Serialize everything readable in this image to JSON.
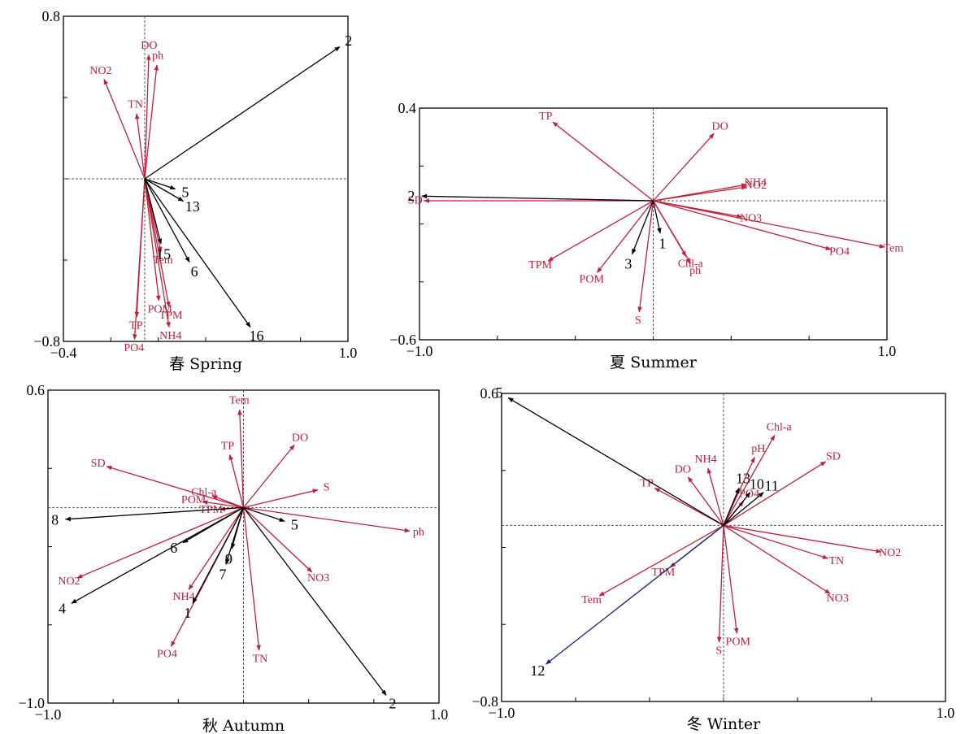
{
  "chart_data": [
    {
      "type": "biplot",
      "caption": "春 Spring",
      "xlim": [
        -0.4,
        1.0
      ],
      "ylim": [
        -0.8,
        0.8
      ],
      "xlim_labels": [
        "−0.4",
        "1.0"
      ],
      "ylim_labels": [
        "−0.8",
        "0.8"
      ],
      "environment": [
        {
          "name": "DO",
          "x": 0.02,
          "y": 0.61
        },
        {
          "name": "ph",
          "x": 0.06,
          "y": 0.56
        },
        {
          "name": "NO2",
          "x": -0.2,
          "y": 0.49
        },
        {
          "name": "TN",
          "x": -0.04,
          "y": 0.32
        },
        {
          "name": "Tem",
          "x": 0.08,
          "y": -0.36
        },
        {
          "name": "POM",
          "x": 0.07,
          "y": -0.6
        },
        {
          "name": "TPM",
          "x": 0.12,
          "y": -0.63
        },
        {
          "name": "TP",
          "x": -0.04,
          "y": -0.68
        },
        {
          "name": "NH4",
          "x": 0.12,
          "y": -0.73
        },
        {
          "name": "PO4",
          "x": -0.05,
          "y": -0.79
        }
      ],
      "species": [
        {
          "name": "2",
          "x": 0.96,
          "y": 0.65
        },
        {
          "name": "5",
          "x": 0.15,
          "y": -0.05
        },
        {
          "name": "13",
          "x": 0.19,
          "y": -0.11
        },
        {
          "name": "15",
          "x": 0.08,
          "y": -0.32
        },
        {
          "name": "6",
          "x": 0.22,
          "y": -0.41
        },
        {
          "name": "16",
          "x": 0.52,
          "y": -0.73
        }
      ]
    },
    {
      "type": "biplot",
      "caption": "夏 Summer",
      "xlim": [
        -1.0,
        1.0
      ],
      "ylim": [
        -0.6,
        0.4
      ],
      "xlim_labels": [
        "−1.0",
        "1.0"
      ],
      "ylim_labels": [
        "−0.6",
        "0.4"
      ],
      "environment": [
        {
          "name": "TP",
          "x": -0.43,
          "y": 0.34
        },
        {
          "name": "DO",
          "x": 0.26,
          "y": 0.29
        },
        {
          "name": "NH4",
          "x": 0.4,
          "y": 0.07
        },
        {
          "name": "NO2",
          "x": 0.4,
          "y": 0.06
        },
        {
          "name": "SD",
          "x": -0.98,
          "y": 0.0
        },
        {
          "name": "NO3",
          "x": 0.38,
          "y": -0.07
        },
        {
          "name": "Chl-a",
          "x": 0.14,
          "y": -0.24
        },
        {
          "name": "ph",
          "x": 0.16,
          "y": -0.27
        },
        {
          "name": "PO4",
          "x": 0.76,
          "y": -0.21
        },
        {
          "name": "Tem",
          "x": 0.99,
          "y": -0.2
        },
        {
          "name": "TPM",
          "x": -0.45,
          "y": -0.26
        },
        {
          "name": "POM",
          "x": -0.24,
          "y": -0.31
        },
        {
          "name": "S",
          "x": -0.06,
          "y": -0.48
        }
      ],
      "species": [
        {
          "name": "2",
          "x": -0.99,
          "y": 0.02
        },
        {
          "name": "1",
          "x": 0.03,
          "y": -0.14
        },
        {
          "name": "3",
          "x": -0.09,
          "y": -0.23
        }
      ]
    },
    {
      "type": "biplot",
      "caption": "秋 Autumn",
      "xlim": [
        -1.0,
        1.0
      ],
      "ylim": [
        -1.0,
        0.6
      ],
      "xlim_labels": [
        "−1.0",
        "1.0"
      ],
      "ylim_labels": [
        "−1.0",
        "0.6"
      ],
      "environment": [
        {
          "name": "Tem",
          "x": -0.02,
          "y": 0.5
        },
        {
          "name": "TP",
          "x": -0.07,
          "y": 0.27
        },
        {
          "name": "DO",
          "x": 0.26,
          "y": 0.32
        },
        {
          "name": "SD",
          "x": -0.7,
          "y": 0.21
        },
        {
          "name": "S",
          "x": 0.38,
          "y": 0.09
        },
        {
          "name": "Chl-a",
          "x": -0.16,
          "y": 0.06
        },
        {
          "name": "POM",
          "x": -0.21,
          "y": 0.03
        },
        {
          "name": "TPM",
          "x": -0.12,
          "y": -0.01
        },
        {
          "name": "ph",
          "x": 0.85,
          "y": -0.12
        },
        {
          "name": "NO2",
          "x": -0.85,
          "y": -0.36
        },
        {
          "name": "NH4",
          "x": -0.28,
          "y": -0.42
        },
        {
          "name": "NO3",
          "x": 0.35,
          "y": -0.33
        },
        {
          "name": "PO4",
          "x": -0.37,
          "y": -0.71
        },
        {
          "name": "TN",
          "x": 0.08,
          "y": -0.73
        }
      ],
      "species": [
        {
          "name": "8",
          "x": -0.91,
          "y": -0.06
        },
        {
          "name": "5",
          "x": 0.21,
          "y": -0.07
        },
        {
          "name": "6",
          "x": -0.31,
          "y": -0.18
        },
        {
          "name": "9",
          "x": -0.06,
          "y": -0.21
        },
        {
          "name": "7",
          "x": -0.09,
          "y": -0.29
        },
        {
          "name": "4",
          "x": -0.88,
          "y": -0.49
        },
        {
          "name": "1",
          "x": -0.26,
          "y": -0.49
        },
        {
          "name": "2",
          "x": 0.73,
          "y": -0.96
        }
      ]
    },
    {
      "type": "biplot",
      "caption": "冬 Winter",
      "xlim": [
        -1.0,
        1.0
      ],
      "ylim": [
        -0.8,
        0.6
      ],
      "xlim_labels": [
        "−1.0",
        "1.0"
      ],
      "ylim_labels": [
        "−0.8",
        "0.6"
      ],
      "environment": [
        {
          "name": "Chl-a",
          "x": 0.23,
          "y": 0.41
        },
        {
          "name": "pH",
          "x": 0.14,
          "y": 0.31
        },
        {
          "name": "SD",
          "x": 0.46,
          "y": 0.29
        },
        {
          "name": "NH4",
          "x": -0.07,
          "y": 0.26
        },
        {
          "name": "DO",
          "x": -0.16,
          "y": 0.22
        },
        {
          "name": "TP",
          "x": -0.31,
          "y": 0.17
        },
        {
          "name": "PO4",
          "x": 0.09,
          "y": 0.11
        },
        {
          "name": "NO2",
          "x": 0.71,
          "y": -0.12
        },
        {
          "name": "TN",
          "x": 0.47,
          "y": -0.15
        },
        {
          "name": "NO3",
          "x": 0.48,
          "y": -0.31
        },
        {
          "name": "TPM",
          "x": -0.24,
          "y": -0.19
        },
        {
          "name": "Tem",
          "x": -0.56,
          "y": -0.32
        },
        {
          "name": "POM",
          "x": 0.06,
          "y": -0.49
        },
        {
          "name": "S",
          "x": -0.02,
          "y": -0.53
        }
      ],
      "species": [
        {
          "name": "5",
          "x": -0.97,
          "y": 0.58
        },
        {
          "name": "13",
          "x": 0.07,
          "y": 0.17
        },
        {
          "name": "10",
          "x": 0.12,
          "y": 0.15
        },
        {
          "name": "11",
          "x": 0.18,
          "y": 0.15
        },
        {
          "name": "12",
          "x": -0.8,
          "y": -0.63,
          "color": "#1a237e"
        }
      ]
    }
  ]
}
